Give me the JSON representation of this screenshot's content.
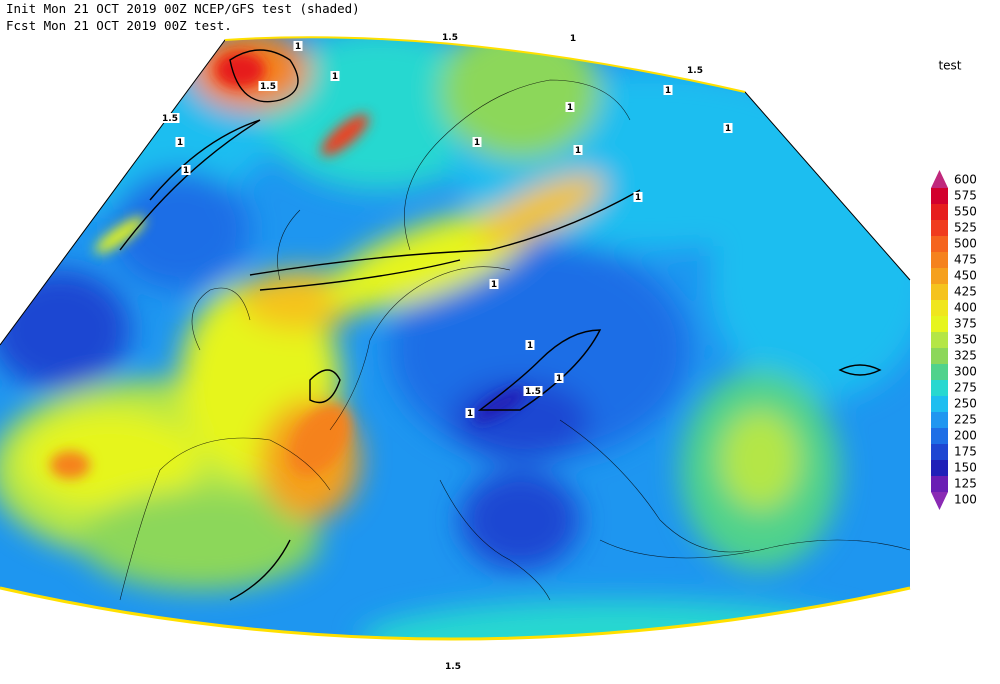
{
  "header": {
    "line1": "Init  Mon 21 OCT 2019 00Z  NCEP/GFS test (shaded)",
    "line2": "Fcst Mon 21 OCT 2019 00Z  test."
  },
  "colorbar": {
    "title": "test",
    "levels": [
      100,
      125,
      150,
      175,
      200,
      225,
      250,
      275,
      300,
      325,
      350,
      375,
      400,
      425,
      450,
      475,
      500,
      525,
      550,
      575,
      600
    ],
    "colors": [
      "#8a2ab4",
      "#6a1eb4",
      "#2020b8",
      "#1e46d2",
      "#1e6ee6",
      "#2096f0",
      "#1ebef0",
      "#28d8d0",
      "#50d28c",
      "#8cd75a",
      "#b4e646",
      "#e6f51e",
      "#f0e61e",
      "#f5c31e",
      "#f5a01e",
      "#f5821e",
      "#f5641e",
      "#f03c1e",
      "#e61e1e",
      "#d2002d",
      "#c0287c"
    ]
  },
  "contour_labels": [
    "1.5",
    "1",
    "1",
    "1.5",
    "1",
    "1.5",
    "1",
    "1",
    "1.5",
    "1",
    "1",
    "1",
    "1",
    "1",
    "1",
    "1",
    "1",
    "1",
    "1.5",
    "1",
    "1.5"
  ]
}
